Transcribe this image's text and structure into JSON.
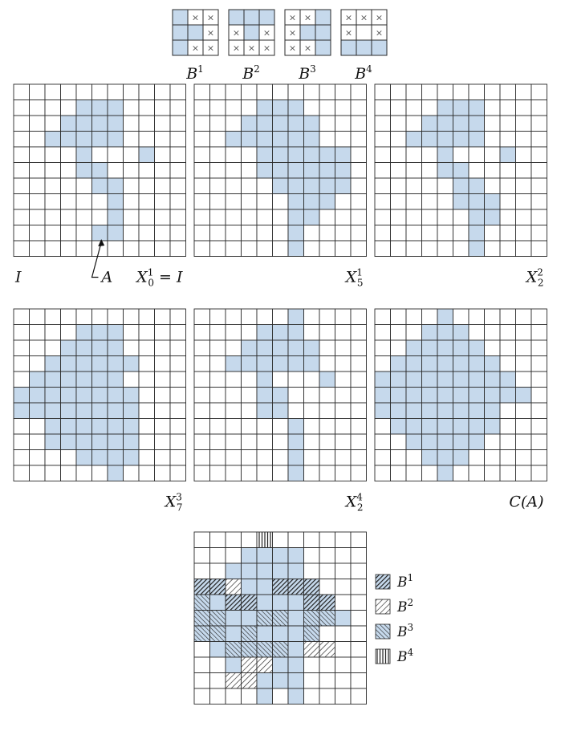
{
  "colors": {
    "fill": "#c6d9ec",
    "grid": "#2b2b2b",
    "hatch": "#222222"
  },
  "structuring_elements": [
    {
      "name": "B",
      "sup": "1",
      "rows": [
        "0xx",
        "00x",
        "0xx"
      ]
    },
    {
      "name": "B",
      "sup": "2",
      "rows": [
        "000",
        "x0x",
        "xxx"
      ]
    },
    {
      "name": "B",
      "sup": "3",
      "rows": [
        "xx0",
        "x00",
        "xx0"
      ]
    },
    {
      "name": "B",
      "sup": "4",
      "rows": [
        "xxx",
        "x.x",
        "000"
      ]
    }
  ],
  "panels": [
    {
      "id": "X0",
      "left": "I",
      "right_main": "X",
      "right_sub": "0",
      "right_sup": "1",
      "right_suffix": " = I",
      "arrow_label": "A",
      "rows": [
        "............",
        "....###.....",
        "...####.....",
        "..#####.....",
        "....#...#...",
        "....##......",
        ".....##.....",
        "......#.....",
        "......#.....",
        ".....##.....",
        "............",
        "............"
      ]
    },
    {
      "id": "X51",
      "right_main": "X",
      "right_sub": "5",
      "right_sup": "1",
      "rows": [
        "............",
        "....###.....",
        "...#####....",
        "..######....",
        "....######..",
        "....######..",
        ".....#####..",
        "......###...",
        "......##....",
        "......#.....",
        "......#.....",
        "............"
      ]
    },
    {
      "id": "X22",
      "right_main": "X",
      "right_sub": "2",
      "right_sup": "2",
      "rows": [
        "............",
        "....###.....",
        "...####.....",
        "..#####.....",
        "....#...#...",
        "....##......",
        ".....##.....",
        ".....###....",
        "......##....",
        "......#.....",
        "......#.....",
        "............"
      ]
    },
    {
      "id": "X73",
      "right_main": "X",
      "right_sub": "7",
      "right_sup": "3",
      "rows": [
        "............",
        "....###.....",
        "...####.....",
        "..######....",
        ".######.....",
        "########....",
        "########....",
        "..######....",
        "..######....",
        "....####....",
        "......#.....",
        "............"
      ]
    },
    {
      "id": "X24",
      "right_main": "X",
      "right_sub": "2",
      "right_sup": "4",
      "rows": [
        "......#.....",
        "....###.....",
        "...#####....",
        "..######....",
        "....#...#...",
        "....##......",
        "....##......",
        "......#.....",
        "......#.....",
        "......#.....",
        "......#.....",
        "............"
      ]
    },
    {
      "id": "CA",
      "right_main": "C(A)",
      "rows": [
        "....#.......",
        "...###......",
        "..#####.....",
        ".#######....",
        "#########...",
        "##########..",
        "########....",
        ".#######....",
        "..#####.....",
        "...###......",
        "....#.......",
        "............"
      ]
    }
  ],
  "combined": {
    "rows": [
      "............",
      "......#.....",
      "......#.....",
      "......#.....",
      "......#.....",
      "......#.....",
      "......#.....",
      "......#.....",
      "......#.....",
      "......#.....",
      "......#.....",
      "............"
    ],
    "hatch": [
      "....4.......",
      "............",
      "............",
      "112..111....",
      "3.11...11...",
      "33..33.33...",
      "33.3...3....",
      "..3333.22...",
      "...22.......",
      "..22........",
      "............",
      "............"
    ]
  },
  "legend": [
    {
      "key": "1",
      "name": "B",
      "sup": "1"
    },
    {
      "key": "2",
      "name": "B",
      "sup": "2"
    },
    {
      "key": "3",
      "name": "B",
      "sup": "3"
    },
    {
      "key": "4",
      "name": "B",
      "sup": "4"
    }
  ]
}
